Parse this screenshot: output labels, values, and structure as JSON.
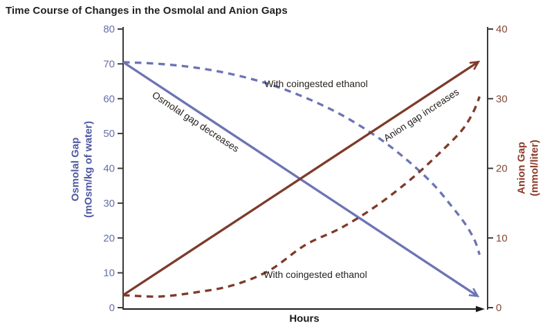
{
  "chart_data": {
    "type": "line",
    "title": "Time Course of Changes in the Osmolal and Anion Gaps",
    "xlabel": "Hours",
    "grid": false,
    "legend_position": "none",
    "x_axis": {
      "label": "Hours",
      "numeric_ticks_shown": false,
      "note": "x values normalized 0-1 across plotted time span"
    },
    "left_axis": {
      "title_line1": "Osmolal Gap",
      "title_line2": "(mOsm/kg of water)",
      "range": [
        0,
        80
      ],
      "ticks": [
        0,
        10,
        20,
        30,
        40,
        50,
        60,
        70,
        80
      ],
      "tick_color": "#6670a8",
      "title_color": "#4d58a2"
    },
    "right_axis": {
      "title_line1": "Anion Gap",
      "title_line2": "(mmol/liter)",
      "range": [
        0,
        40
      ],
      "ticks": [
        0,
        10,
        20,
        30,
        40
      ],
      "tick_color": "#82493a",
      "title_color": "#8c3a28"
    },
    "series": [
      {
        "name": "Osmolal gap decreases",
        "axis": "left",
        "style": "solid",
        "arrow_end": true,
        "color": "#6b75b4",
        "points": [
          [
            0,
            70.5
          ],
          [
            0.973,
            3.3
          ]
        ]
      },
      {
        "name": "With coingested ethanol (osmolal gap)",
        "axis": "left",
        "style": "dashed",
        "arrow_end": false,
        "color": "#6b75b4",
        "points": [
          [
            0,
            70.5
          ],
          [
            0.1,
            70.0
          ],
          [
            0.2,
            68.9
          ],
          [
            0.3,
            67.0
          ],
          [
            0.4,
            64.2
          ],
          [
            0.5,
            60.3
          ],
          [
            0.6,
            55.3
          ],
          [
            0.7,
            48.8
          ],
          [
            0.78,
            42.3
          ],
          [
            0.85,
            35.5
          ],
          [
            0.9,
            29.3
          ],
          [
            0.94,
            23.8
          ],
          [
            0.965,
            19.2
          ],
          [
            0.978,
            15.2
          ]
        ]
      },
      {
        "name": "Anion gap increases",
        "axis": "right",
        "style": "solid",
        "arrow_end": true,
        "color": "#7e3b2b",
        "points": [
          [
            0,
            1.8
          ],
          [
            0.975,
            35.3
          ]
        ]
      },
      {
        "name": "With coingested ethanol (anion gap)",
        "axis": "right",
        "style": "dashed",
        "arrow_end": false,
        "color": "#7e3b2b",
        "points": [
          [
            0,
            1.8
          ],
          [
            0.1,
            1.6
          ],
          [
            0.2,
            2.2
          ],
          [
            0.3,
            3.2
          ],
          [
            0.4,
            5.3
          ],
          [
            0.5,
            9.0
          ],
          [
            0.6,
            11.5
          ],
          [
            0.7,
            14.8
          ],
          [
            0.8,
            18.9
          ],
          [
            0.88,
            22.8
          ],
          [
            0.93,
            25.5
          ],
          [
            0.96,
            28.0
          ],
          [
            0.978,
            30.3
          ]
        ]
      }
    ],
    "annotations": [
      {
        "text": "Osmolal gap decreases",
        "attached_to": "Osmolal gap decreases",
        "rotation_deg": 33.4
      },
      {
        "text": "With coingested ethanol",
        "attached_to": "With coingested ethanol (osmolal gap)",
        "rotation_deg": 0
      },
      {
        "text": "Anion gap increases",
        "attached_to": "Anion gap increases",
        "rotation_deg": -33.4
      },
      {
        "text": "With coingested ethanol",
        "attached_to": "With coingested ethanol (anion gap)",
        "rotation_deg": 0
      }
    ],
    "axis_line_color": "#3a3737",
    "annotation_text_color": "#26211e",
    "title_color": "#231f20"
  }
}
